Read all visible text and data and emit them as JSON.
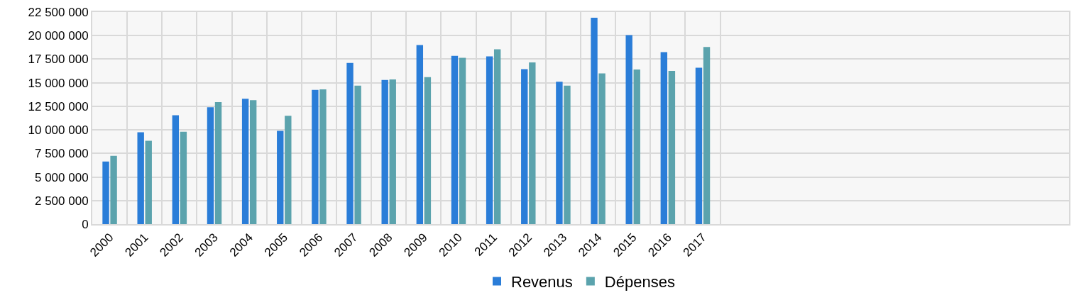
{
  "chart_data": {
    "type": "bar",
    "categories": [
      "2000",
      "2001",
      "2002",
      "2003",
      "2004",
      "2005",
      "2006",
      "2007",
      "2008",
      "2009",
      "2010",
      "2011",
      "2012",
      "2013",
      "2014",
      "2015",
      "2016",
      "2017",
      null,
      null,
      null,
      null,
      null,
      null,
      null,
      null,
      null,
      null
    ],
    "series": [
      {
        "name": "Revenus",
        "color": "#2a7dd8",
        "values": [
          6650000,
          9750000,
          11550000,
          12400000,
          13300000,
          9900000,
          14250000,
          17100000,
          15300000,
          19000000,
          17850000,
          17800000,
          16450000,
          15100000,
          21900000,
          20050000,
          18250000,
          16600000,
          null,
          null,
          null,
          null,
          null,
          null,
          null,
          null,
          null,
          null
        ]
      },
      {
        "name": "Dépenses",
        "color": "#5ba3ad",
        "values": [
          7250000,
          8850000,
          9800000,
          12950000,
          13150000,
          11500000,
          14300000,
          14700000,
          15350000,
          15600000,
          17650000,
          18550000,
          17150000,
          14700000,
          16000000,
          16400000,
          16250000,
          18800000,
          null,
          null,
          null,
          null,
          null,
          null,
          null,
          null,
          null,
          null
        ]
      }
    ],
    "ylim": [
      0,
      22500000
    ],
    "yticks": [
      {
        "value": 0,
        "label": "0"
      },
      {
        "value": 2500000,
        "label": "2 500 000"
      },
      {
        "value": 5000000,
        "label": "5 000 000"
      },
      {
        "value": 7500000,
        "label": "7 500 000"
      },
      {
        "value": 10000000,
        "label": "10 000 000"
      },
      {
        "value": 12500000,
        "label": "12 500 000"
      },
      {
        "value": 15000000,
        "label": "15 000 000"
      },
      {
        "value": 17500000,
        "label": "17 500 000"
      },
      {
        "value": 20000000,
        "label": "20 000 000"
      },
      {
        "value": 22500000,
        "label": "22 500 000"
      }
    ],
    "grid": true,
    "legend": "bottom"
  }
}
